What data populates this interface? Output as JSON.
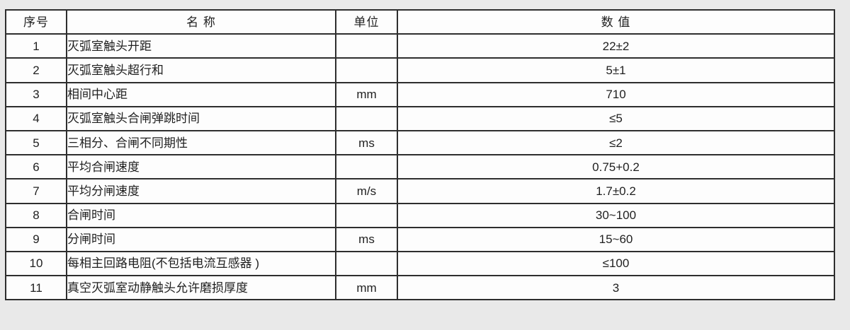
{
  "table": {
    "headers": [
      "序号",
      "名 称",
      "单位",
      "数 值"
    ],
    "rows": [
      {
        "no": "1",
        "name": "灭弧室触头开距",
        "unit": "",
        "value": "22±2"
      },
      {
        "no": "2",
        "name": "灭弧室触头超行和",
        "unit": "",
        "value": "5±1"
      },
      {
        "no": "3",
        "name": "相间中心距",
        "unit": "mm",
        "value": "710"
      },
      {
        "no": "4",
        "name": "灭弧室触头合闸弹跳时间",
        "unit": "",
        "value": "≤5"
      },
      {
        "no": "5",
        "name": "三相分、合闸不同期性",
        "unit": "ms",
        "value": "≤2"
      },
      {
        "no": "6",
        "name": "平均合闸速度",
        "unit": "",
        "value": "0.75+0.2"
      },
      {
        "no": "7",
        "name": "平均分闸速度",
        "unit": "m/s",
        "value": "1.7±0.2"
      },
      {
        "no": "8",
        "name": "合闸时间",
        "unit": "",
        "value": "30~100"
      },
      {
        "no": "9",
        "name": "分闸时间",
        "unit": "ms",
        "value": "15~60"
      },
      {
        "no": "10",
        "name": "每相主回路电阻(不包括电流互感器 )",
        "unit": "",
        "value": "≤100"
      },
      {
        "no": "11",
        "name": "真空灭弧室动静触头允许磨损厚度",
        "unit": "mm",
        "value": "3"
      }
    ],
    "colors": {
      "border": "#2e2e2e",
      "page_background": "#e9e9e9",
      "cell_background": "#fdfdfd",
      "text": "#1f1f1f"
    }
  }
}
